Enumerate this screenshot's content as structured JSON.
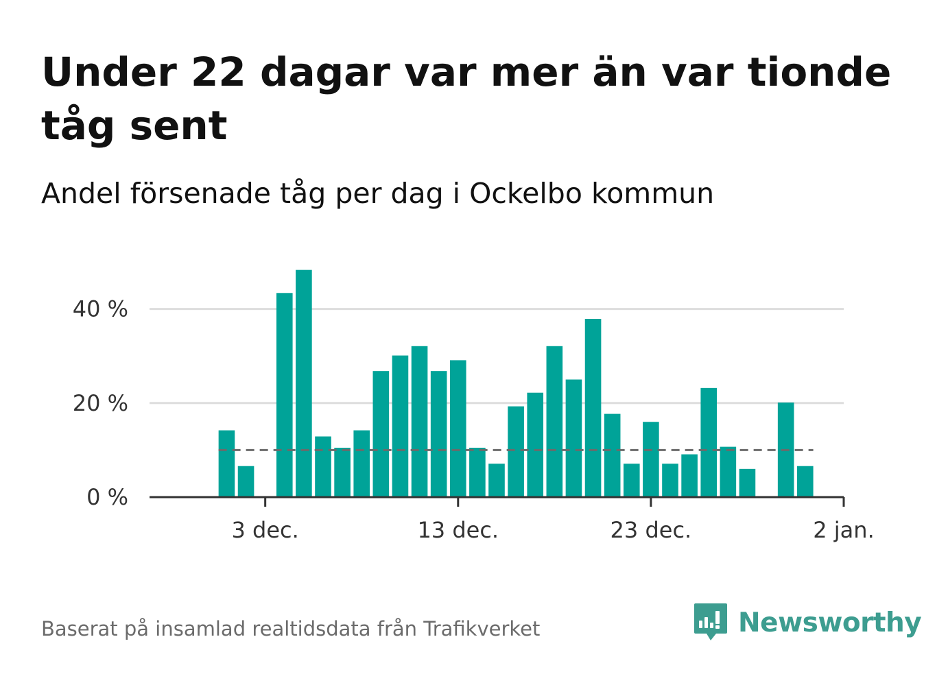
{
  "title": "Under 22 dagar var mer än var tionde tåg sent",
  "subtitle": "Andel försenade tåg per dag i Ockelbo kommun",
  "source": "Baserat på insamlad realtidsdata från Trafikverket",
  "brand": {
    "name": "Newsworthy",
    "icon": "newsworthy-logo-icon",
    "color": "#3d9d90"
  },
  "colors": {
    "bar": "#00a398",
    "reference_line": "#6b6b6b",
    "grid": "#dddddd",
    "axis": "#333333"
  },
  "chart_data": {
    "type": "bar",
    "x": [
      "2023-12-01",
      "2023-12-02",
      "2023-12-03",
      "2023-12-04",
      "2023-12-05",
      "2023-12-06",
      "2023-12-07",
      "2023-12-08",
      "2023-12-09",
      "2023-12-10",
      "2023-12-11",
      "2023-12-12",
      "2023-12-13",
      "2023-12-14",
      "2023-12-15",
      "2023-12-16",
      "2023-12-17",
      "2023-12-18",
      "2023-12-19",
      "2023-12-20",
      "2023-12-21",
      "2023-12-22",
      "2023-12-23",
      "2023-12-24",
      "2023-12-25",
      "2023-12-26",
      "2023-12-27",
      "2023-12-28",
      "2023-12-29",
      "2023-12-30",
      "2023-12-31"
    ],
    "values": [
      14.2,
      6.6,
      null,
      43.4,
      48.3,
      12.9,
      10.5,
      14.2,
      26.8,
      30.1,
      32.1,
      26.8,
      29.1,
      10.5,
      7.1,
      19.3,
      22.2,
      32.1,
      25.0,
      37.9,
      17.7,
      7.1,
      16.0,
      7.1,
      9.1,
      23.2,
      10.7,
      6.0,
      null,
      20.1,
      6.6
    ],
    "reference_line": {
      "value": 10,
      "style": "dashed"
    },
    "ylim": [
      0,
      50
    ],
    "yticks": [
      0,
      20,
      40
    ],
    "ytick_labels": [
      "0 %",
      "20 %",
      "40 %"
    ],
    "xticks": [
      "2023-12-03",
      "2023-12-13",
      "2023-12-23",
      "2024-01-02"
    ],
    "xtick_labels": [
      "3 dec.",
      "13 dec.",
      "23 dec.",
      "2 jan."
    ],
    "xlim": [
      "2023-11-27",
      "2024-01-02"
    ],
    "grid": true,
    "xlabel": "",
    "ylabel": ""
  }
}
